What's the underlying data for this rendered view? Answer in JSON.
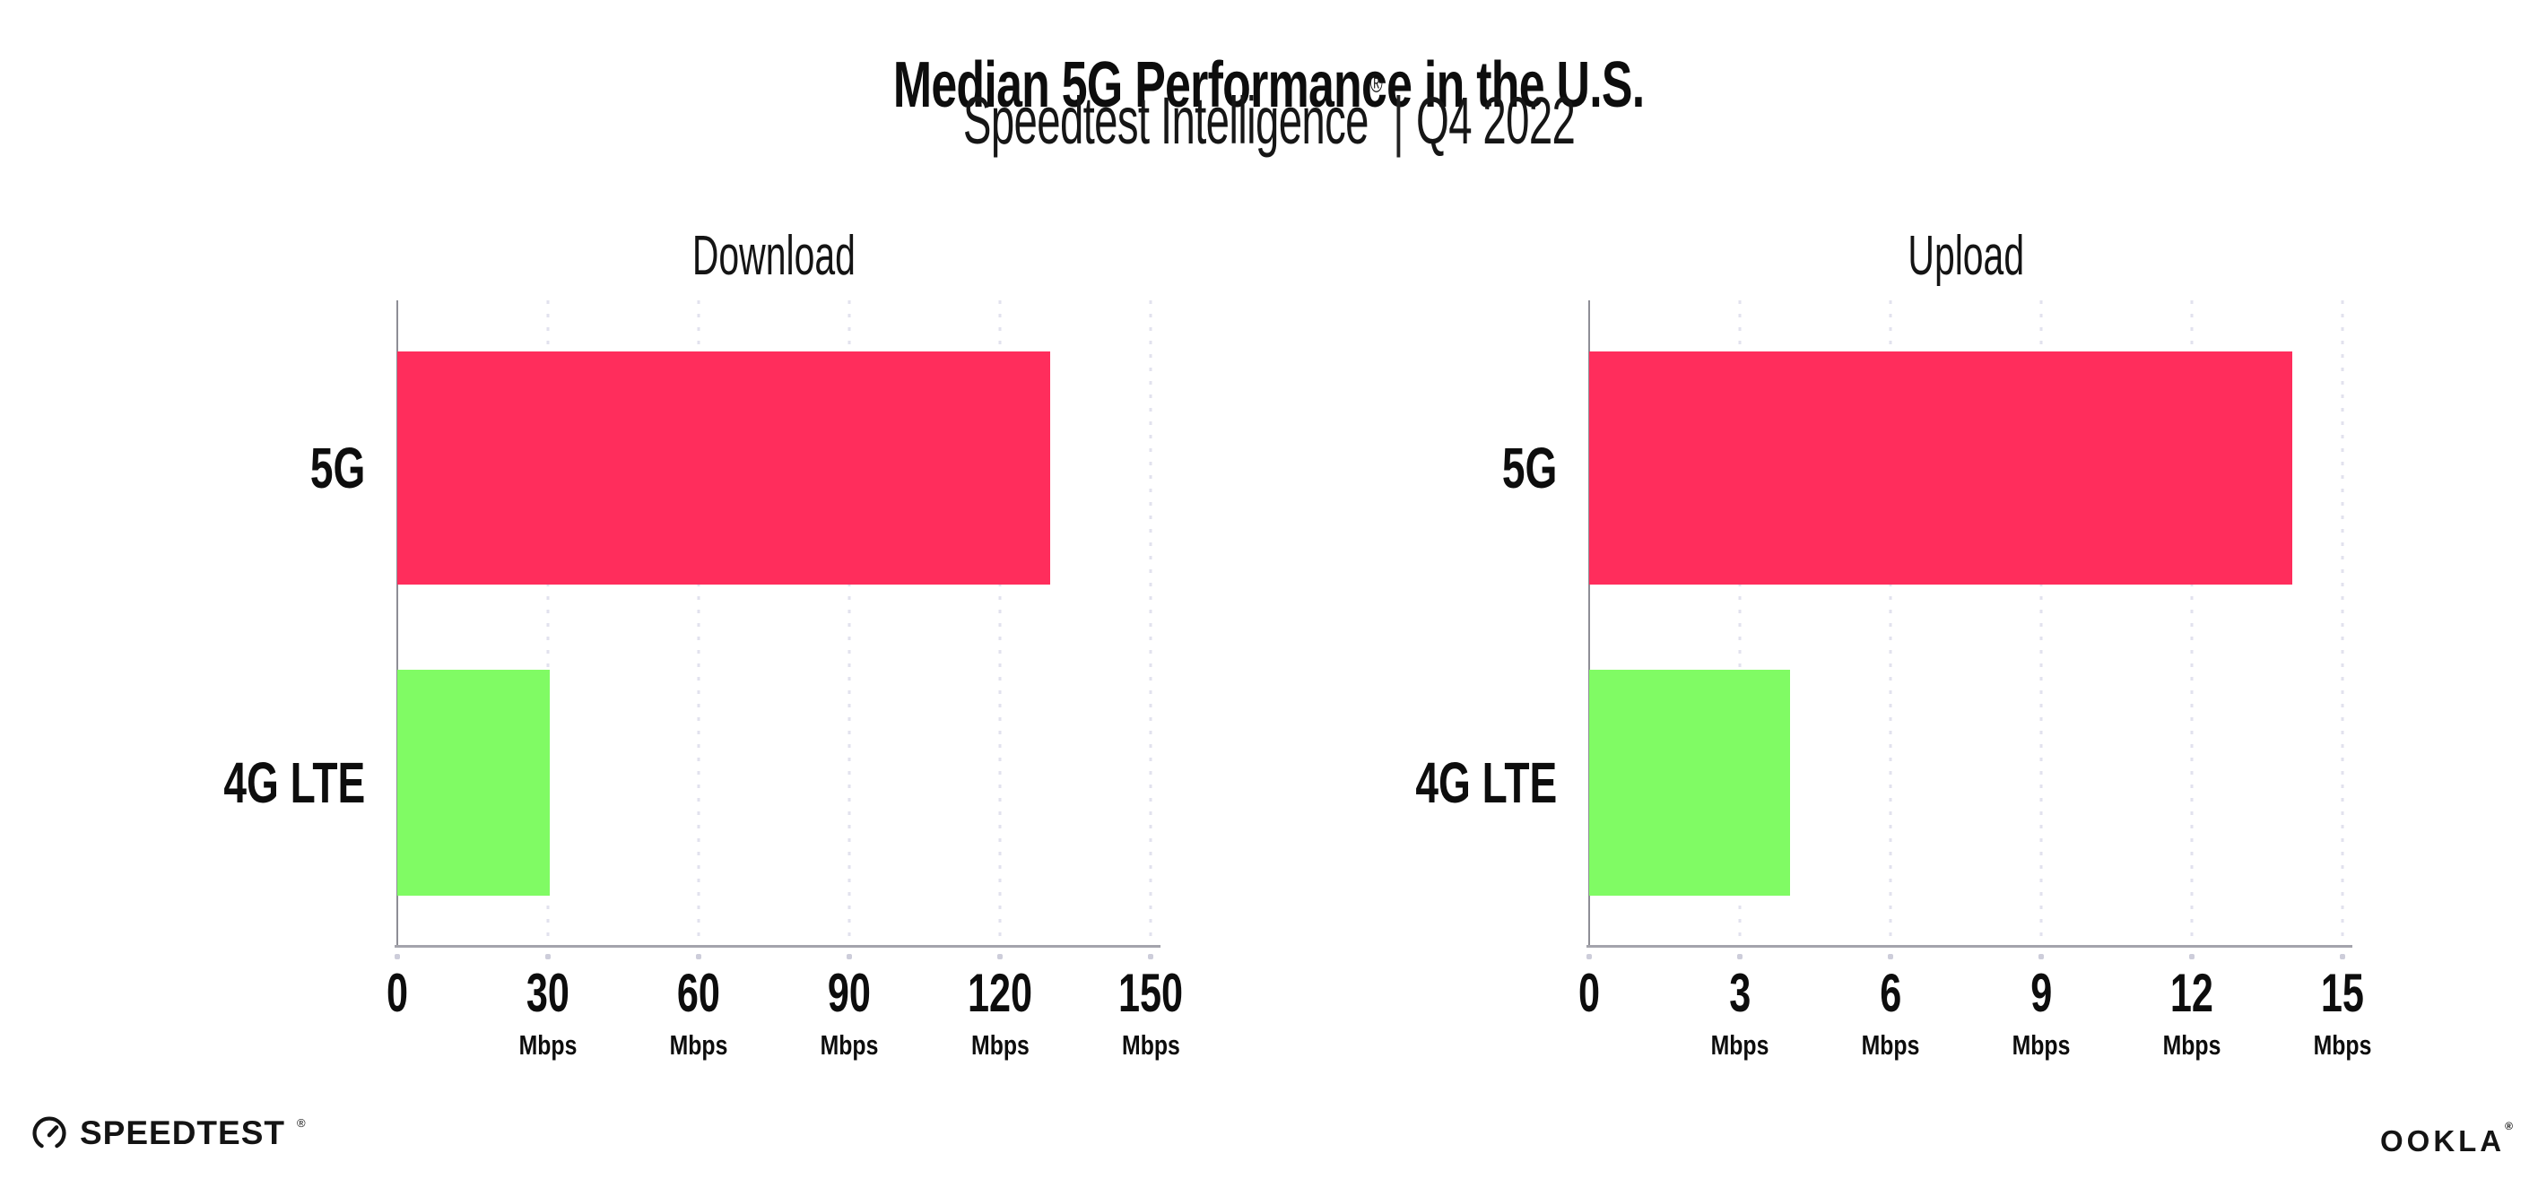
{
  "header": {
    "title": "Median 5G Performance in the U.S.",
    "subtitle_brand": "Speedtest Intelligence",
    "subtitle_regmark": "®",
    "subtitle_separator": "|",
    "subtitle_period": "Q4 2022"
  },
  "footer": {
    "speedtest_logo_text": "SPEEDTEST",
    "speedtest_logo_mark": "®",
    "speedtest_icon": "gauge-icon",
    "ookla_logo_text": "OOKLA",
    "ookla_logo_mark": "®"
  },
  "colors": {
    "bar_5g": "#ff2d5c",
    "bar_4g_lte": "#80fb64",
    "axis_line": "#a4a4ac",
    "y_axis_line": "#8e8e96",
    "gridline_dots": "#e2e2ee",
    "text": "#0d0d0d"
  },
  "chart_data": [
    {
      "type": "bar",
      "orientation": "horizontal",
      "title": "Download",
      "categories": [
        "5G",
        "4G LTE"
      ],
      "values": [
        130,
        30.4
      ],
      "colors": [
        "#ff2d5c",
        "#80fb64"
      ],
      "unit": "Mbps",
      "xlim": [
        0,
        150
      ],
      "ticks": [
        0,
        30,
        60,
        90,
        120,
        150
      ],
      "tick_unit_label": "Mbps",
      "grid": "dotted-vertical",
      "legend": "none"
    },
    {
      "type": "bar",
      "orientation": "horizontal",
      "title": "Upload",
      "categories": [
        "5G",
        "4G LTE"
      ],
      "values": [
        14,
        4
      ],
      "colors": [
        "#ff2d5c",
        "#80fb64"
      ],
      "unit": "Mbps",
      "xlim": [
        0,
        15
      ],
      "ticks": [
        0,
        3,
        6,
        9,
        12,
        15
      ],
      "tick_unit_label": "Mbps",
      "grid": "dotted-vertical",
      "legend": "none"
    }
  ]
}
